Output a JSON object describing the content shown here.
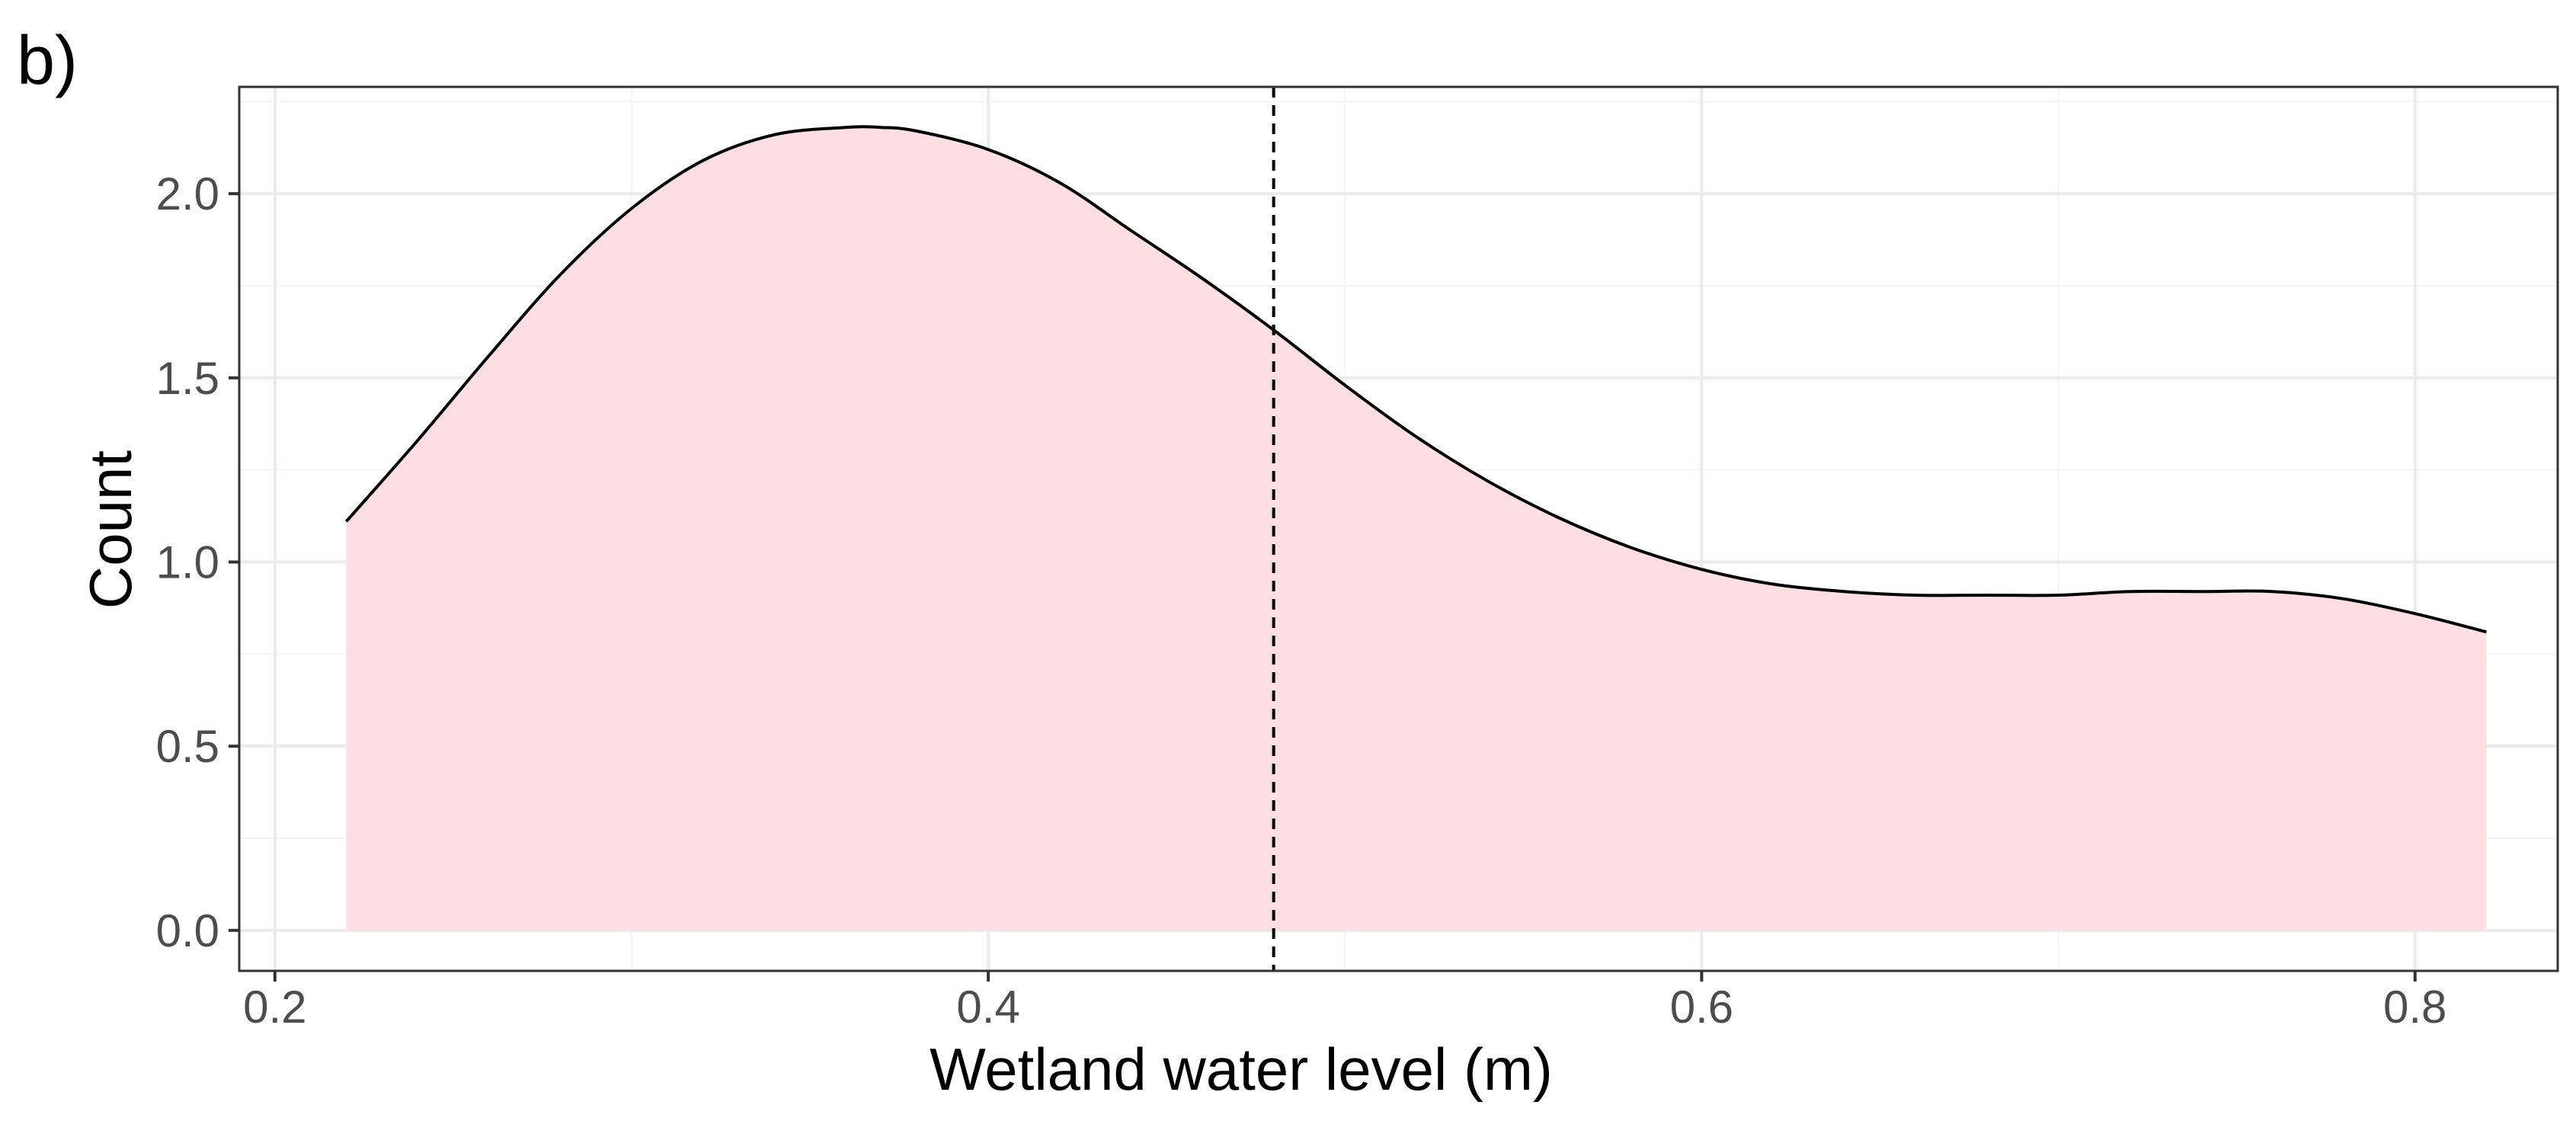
{
  "panel_tag": "b)",
  "chart_data": {
    "type": "area",
    "title": "",
    "xlabel": "Wetland water level (m)",
    "ylabel": "Count",
    "xlim": [
      0.19,
      0.84
    ],
    "ylim": [
      -0.11,
      2.29
    ],
    "x_ticks": [
      0.2,
      0.4,
      0.6,
      0.8
    ],
    "x_tick_labels": [
      "0.2",
      "0.4",
      "0.6",
      "0.8"
    ],
    "y_ticks": [
      0.0,
      0.5,
      1.0,
      1.5,
      2.0
    ],
    "y_tick_labels": [
      "0.0",
      "0.5",
      "1.0",
      "1.5",
      "2.0"
    ],
    "grid": true,
    "legend": "none",
    "reference_line": {
      "x": 0.48,
      "style": "dashed"
    },
    "series": [
      {
        "x": [
          0.22,
          0.24,
          0.26,
          0.28,
          0.3,
          0.32,
          0.34,
          0.36,
          0.37,
          0.38,
          0.4,
          0.42,
          0.44,
          0.46,
          0.48,
          0.5,
          0.52,
          0.54,
          0.56,
          0.58,
          0.6,
          0.62,
          0.64,
          0.66,
          0.68,
          0.7,
          0.72,
          0.74,
          0.76,
          0.78,
          0.8,
          0.82
        ],
        "y": [
          1.11,
          1.33,
          1.56,
          1.78,
          1.96,
          2.09,
          2.16,
          2.18,
          2.18,
          2.17,
          2.12,
          2.03,
          1.9,
          1.77,
          1.63,
          1.48,
          1.34,
          1.22,
          1.12,
          1.04,
          0.98,
          0.94,
          0.92,
          0.91,
          0.91,
          0.91,
          0.92,
          0.92,
          0.92,
          0.9,
          0.86,
          0.81
        ]
      }
    ]
  },
  "colors": {
    "fill": "#fddfe3",
    "line": "#000000",
    "grid_major": "#ebebeb",
    "grid_minor": "#f5f5f5",
    "panel_border": "#333333",
    "tick_label": "#4d4d4d"
  }
}
